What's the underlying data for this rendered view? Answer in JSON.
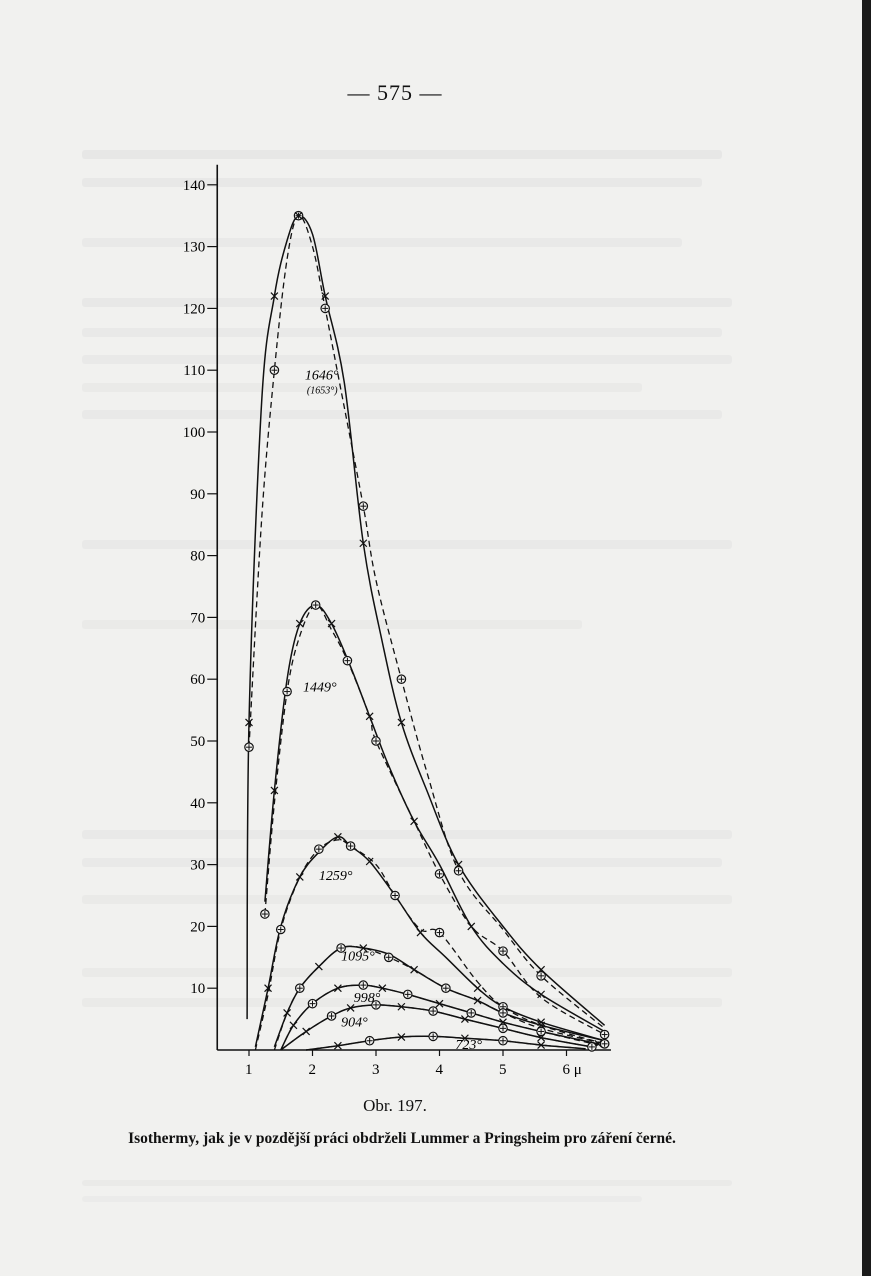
{
  "page_number": "— 575 —",
  "figure_label": "Obr. 197.",
  "caption": "Isothermy, jak je v pozdější práci obdrželi Lummer a Pringsheim pro záření černé.",
  "chart_data": {
    "type": "line",
    "title": "",
    "xlabel": "",
    "ylabel": "",
    "x_unit": "μ",
    "xlim": [
      0.5,
      6.7
    ],
    "ylim": [
      0,
      140
    ],
    "x_ticks": [
      {
        "v": 1,
        "t": "1"
      },
      {
        "v": 2,
        "t": "2"
      },
      {
        "v": 3,
        "t": "3"
      },
      {
        "v": 4,
        "t": "4"
      },
      {
        "v": 5,
        "t": "5"
      },
      {
        "v": 6,
        "t": "6 μ"
      }
    ],
    "y_ticks": [
      10,
      20,
      30,
      40,
      50,
      60,
      70,
      80,
      90,
      100,
      110,
      120,
      130,
      140
    ],
    "series": [
      {
        "name": "1646°",
        "sub": "(1653°)",
        "label_at": [
          1.88,
          108.5
        ],
        "measured": [
          [
            0.97,
            5
          ],
          [
            1.0,
            53
          ],
          [
            1.2,
            105
          ],
          [
            1.4,
            122
          ],
          [
            1.6,
            131
          ],
          [
            1.78,
            135
          ],
          [
            2.0,
            132
          ],
          [
            2.2,
            122
          ],
          [
            2.5,
            108
          ],
          [
            2.8,
            82
          ],
          [
            3.1,
            66
          ],
          [
            3.4,
            53
          ],
          [
            3.8,
            42
          ],
          [
            4.3,
            30
          ],
          [
            5.0,
            20
          ],
          [
            5.6,
            13
          ],
          [
            6.6,
            4
          ]
        ],
        "computed": [
          [
            1.0,
            49
          ],
          [
            1.2,
            86
          ],
          [
            1.4,
            110
          ],
          [
            1.6,
            128
          ],
          [
            1.78,
            135
          ],
          [
            2.0,
            130
          ],
          [
            2.2,
            120
          ],
          [
            2.5,
            104
          ],
          [
            2.8,
            88
          ],
          [
            3.0,
            76
          ],
          [
            3.4,
            60
          ],
          [
            3.8,
            45
          ],
          [
            4.3,
            29
          ],
          [
            5.0,
            19.5
          ],
          [
            5.6,
            12
          ],
          [
            6.6,
            3.5
          ]
        ]
      },
      {
        "name": "1449°",
        "label_at": [
          1.85,
          58
        ],
        "measured": [
          [
            1.25,
            24
          ],
          [
            1.4,
            42
          ],
          [
            1.6,
            60
          ],
          [
            1.8,
            69
          ],
          [
            2.05,
            72
          ],
          [
            2.3,
            69
          ],
          [
            2.6,
            62
          ],
          [
            2.9,
            54
          ],
          [
            3.2,
            46
          ],
          [
            3.6,
            37
          ],
          [
            4.0,
            30
          ],
          [
            4.5,
            20
          ],
          [
            5.0,
            14
          ],
          [
            5.6,
            9
          ],
          [
            6.6,
            3
          ]
        ],
        "computed": [
          [
            1.25,
            22
          ],
          [
            1.4,
            40
          ],
          [
            1.6,
            58
          ],
          [
            1.8,
            67
          ],
          [
            2.05,
            72
          ],
          [
            2.3,
            68
          ],
          [
            2.55,
            63
          ],
          [
            2.9,
            54
          ],
          [
            3.0,
            50
          ],
          [
            3.6,
            37
          ],
          [
            4.0,
            28.5
          ],
          [
            4.5,
            20
          ],
          [
            5.0,
            16
          ],
          [
            5.6,
            8.5
          ],
          [
            6.6,
            2.5
          ]
        ]
      },
      {
        "name": "1259°",
        "label_at": [
          2.1,
          27.5
        ],
        "measured": [
          [
            1.1,
            0.5
          ],
          [
            1.3,
            10
          ],
          [
            1.5,
            20
          ],
          [
            1.8,
            28
          ],
          [
            2.1,
            32
          ],
          [
            2.4,
            34.5
          ],
          [
            2.6,
            33
          ],
          [
            2.9,
            30.5
          ],
          [
            3.3,
            25
          ],
          [
            3.7,
            19
          ],
          [
            4.1,
            15
          ],
          [
            4.6,
            10
          ],
          [
            5.0,
            7
          ],
          [
            5.6,
            4.5
          ],
          [
            6.6,
            1.5
          ]
        ],
        "computed": [
          [
            1.1,
            0
          ],
          [
            1.3,
            9
          ],
          [
            1.5,
            19.5
          ],
          [
            1.8,
            28
          ],
          [
            2.1,
            32.5
          ],
          [
            2.4,
            34
          ],
          [
            2.6,
            33
          ],
          [
            3.0,
            30
          ],
          [
            3.3,
            25
          ],
          [
            3.7,
            19.5
          ],
          [
            4.0,
            19
          ],
          [
            4.6,
            11
          ],
          [
            5.0,
            7
          ],
          [
            5.6,
            4
          ],
          [
            6.6,
            1
          ]
        ]
      },
      {
        "name": "1095°",
        "label_at": [
          2.45,
          14.5
        ],
        "measured": [
          [
            1.4,
            0.5
          ],
          [
            1.6,
            6
          ],
          [
            1.8,
            10
          ],
          [
            2.1,
            13.5
          ],
          [
            2.45,
            16.5
          ],
          [
            2.8,
            16.5
          ],
          [
            3.2,
            15.5
          ],
          [
            3.6,
            13
          ],
          [
            4.1,
            10
          ],
          [
            4.6,
            8
          ],
          [
            5.0,
            6
          ],
          [
            5.6,
            4
          ],
          [
            6.6,
            1.5
          ]
        ],
        "computed": [
          [
            1.4,
            0
          ],
          [
            1.6,
            6
          ],
          [
            1.8,
            10
          ],
          [
            2.1,
            13.5
          ],
          [
            2.45,
            16.5
          ],
          [
            2.8,
            16.5
          ],
          [
            3.2,
            15
          ],
          [
            3.6,
            13
          ],
          [
            4.1,
            10
          ],
          [
            4.6,
            8
          ],
          [
            5.0,
            6
          ],
          [
            5.6,
            3.5
          ],
          [
            6.6,
            1
          ]
        ]
      },
      {
        "name": "998°",
        "label_at": [
          2.65,
          7.8
        ],
        "measured": [
          [
            1.5,
            0
          ],
          [
            1.7,
            4
          ],
          [
            2.0,
            7.5
          ],
          [
            2.4,
            10
          ],
          [
            2.8,
            10.5
          ],
          [
            3.1,
            10
          ],
          [
            3.5,
            9
          ],
          [
            4.0,
            7.5
          ],
          [
            4.5,
            6
          ],
          [
            5.0,
            4.5
          ],
          [
            5.6,
            3
          ],
          [
            6.5,
            1
          ]
        ],
        "computed": [
          [
            1.5,
            0
          ],
          [
            1.7,
            4
          ],
          [
            2.0,
            7.5
          ],
          [
            2.4,
            10
          ],
          [
            2.8,
            10.5
          ],
          [
            3.1,
            10
          ],
          [
            3.5,
            9
          ],
          [
            4.0,
            7.5
          ],
          [
            4.5,
            6
          ],
          [
            5.0,
            4.5
          ],
          [
            5.6,
            3
          ],
          [
            6.5,
            0.8
          ]
        ]
      },
      {
        "name": "904°",
        "label_at": [
          2.45,
          3.8
        ],
        "measured": [
          [
            1.5,
            0
          ],
          [
            1.9,
            3
          ],
          [
            2.3,
            5.5
          ],
          [
            2.6,
            6.8
          ],
          [
            3.0,
            7.3
          ],
          [
            3.4,
            7
          ],
          [
            3.9,
            6.3
          ],
          [
            4.4,
            5
          ],
          [
            5.0,
            3.5
          ],
          [
            5.6,
            2
          ],
          [
            6.4,
            0.5
          ]
        ],
        "computed": [
          [
            1.5,
            0
          ],
          [
            1.9,
            3
          ],
          [
            2.3,
            5.5
          ],
          [
            2.6,
            6.8
          ],
          [
            3.0,
            7.3
          ],
          [
            3.4,
            7
          ],
          [
            3.9,
            6.3
          ],
          [
            4.4,
            5
          ],
          [
            5.0,
            3.5
          ],
          [
            5.6,
            2
          ],
          [
            6.4,
            0.5
          ]
        ]
      },
      {
        "name": "723°",
        "label_at": [
          4.25,
          0.2
        ],
        "measured": [
          [
            1.9,
            0
          ],
          [
            2.4,
            0.7
          ],
          [
            2.9,
            1.5
          ],
          [
            3.4,
            2.1
          ],
          [
            3.9,
            2.2
          ],
          [
            4.4,
            1.9
          ],
          [
            5.0,
            1.5
          ],
          [
            5.6,
            0.8
          ],
          [
            6.3,
            0.2
          ]
        ],
        "computed": [
          [
            1.9,
            0
          ],
          [
            2.4,
            0.7
          ],
          [
            2.9,
            1.5
          ],
          [
            3.4,
            2.1
          ],
          [
            3.9,
            2.2
          ],
          [
            4.4,
            1.9
          ],
          [
            5.0,
            1.5
          ],
          [
            5.6,
            0.8
          ],
          [
            6.3,
            0.2
          ]
        ]
      }
    ]
  }
}
